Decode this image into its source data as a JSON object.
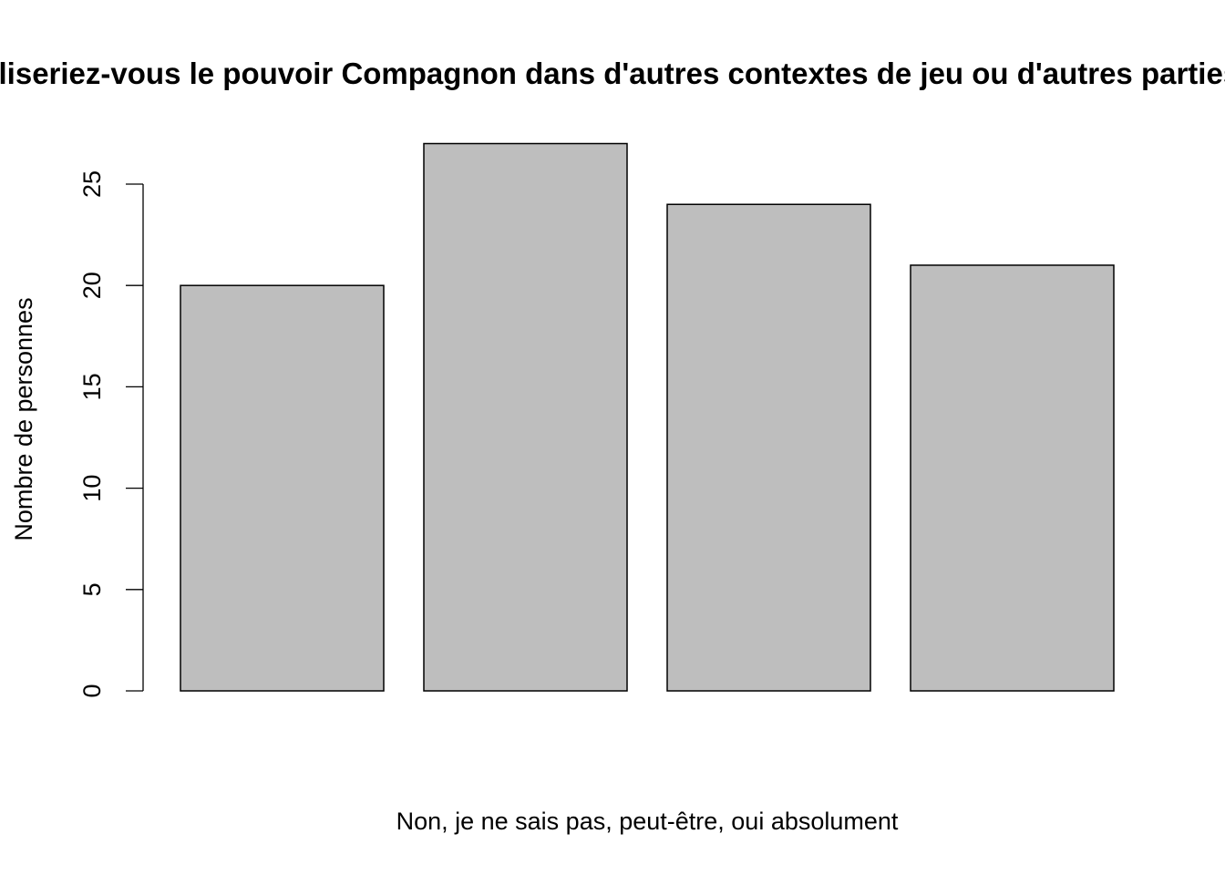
{
  "chart_data": {
    "type": "bar",
    "title": "Utiliseriez-vous le pouvoir Compagnon dans d'autres contextes de jeu ou d'autres parties ?",
    "xlabel": "Non, je ne sais pas, peut-être, oui absolument",
    "ylabel": "Nombre de personnes",
    "categories": [
      "Non",
      "je ne sais pas",
      "peut-être",
      "oui absolument"
    ],
    "values": [
      20,
      27,
      24,
      21
    ],
    "ylim": [
      0,
      27
    ],
    "yticks": [
      0,
      5,
      10,
      15,
      20,
      25
    ],
    "bar_color": "#bebebe",
    "grid": false,
    "legend": "none"
  }
}
